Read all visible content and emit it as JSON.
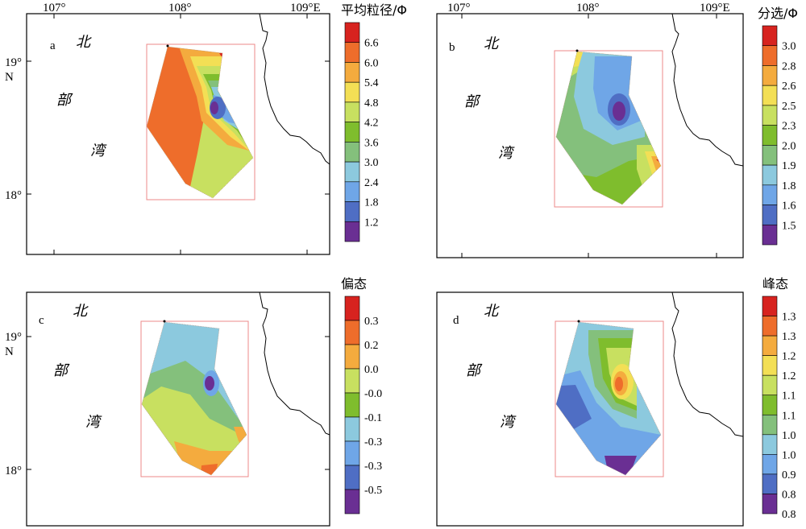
{
  "axis_labels": {
    "lon_ticks": [
      "107°",
      "108°",
      "109°E"
    ],
    "lat_ticks": [
      "19°",
      "18°"
    ],
    "lat_unit": "N"
  },
  "place_labels": [
    "北",
    "部",
    "湾"
  ],
  "panels": [
    {
      "letter": "a",
      "legend_title": "平均粒径/Φ",
      "legend_values": [
        "6.6",
        "6.0",
        "5.4",
        "4.8",
        "4.2",
        "3.6",
        "3.0",
        "2.4",
        "1.8",
        "1.2"
      ],
      "legend_colors": [
        "#d7231f",
        "#ee6d2b",
        "#f4ab3e",
        "#f3df55",
        "#c8e060",
        "#7fbd2d",
        "#84c07c",
        "#8cc9de",
        "#6fa6e7",
        "#4f6ec4",
        "#6a2f93"
      ]
    },
    {
      "letter": "b",
      "legend_title": "分选/Φ",
      "legend_values": [
        "3.0",
        "2.8",
        "2.6",
        "2.5",
        "2.3",
        "2.0",
        "1.9",
        "1.8",
        "1.6",
        "1.5"
      ],
      "legend_colors": [
        "#d7231f",
        "#ee6d2b",
        "#f4ab3e",
        "#f3df55",
        "#c8e060",
        "#7fbd2d",
        "#84c07c",
        "#8cc9de",
        "#6fa6e7",
        "#4f6ec4",
        "#6a2f93"
      ]
    },
    {
      "letter": "c",
      "legend_title": "偏态",
      "legend_values": [
        "0.3",
        "0.2",
        "0.0",
        "-0.0",
        "-0.1",
        "-0.3",
        "-0.3",
        "-0.5"
      ],
      "legend_colors": [
        "#d7231f",
        "#ee6d2b",
        "#f4ab3e",
        "#c8e060",
        "#7fbd2d",
        "#8cc9de",
        "#6fa6e7",
        "#4f6ec4",
        "#6a2f93"
      ]
    },
    {
      "letter": "d",
      "legend_title": "峰态",
      "legend_values": [
        "1.3",
        "1.3",
        "1.2",
        "1.2",
        "1.1",
        "1.1",
        "1.0",
        "1.0",
        "0.9",
        "0.8",
        "0.8"
      ],
      "legend_colors": [
        "#d7231f",
        "#ee6d2b",
        "#f4ab3e",
        "#f3df55",
        "#c8e060",
        "#7fbd2d",
        "#84c07c",
        "#8cc9de",
        "#6fa6e7",
        "#4f6ec4",
        "#6a2f93"
      ]
    }
  ]
}
